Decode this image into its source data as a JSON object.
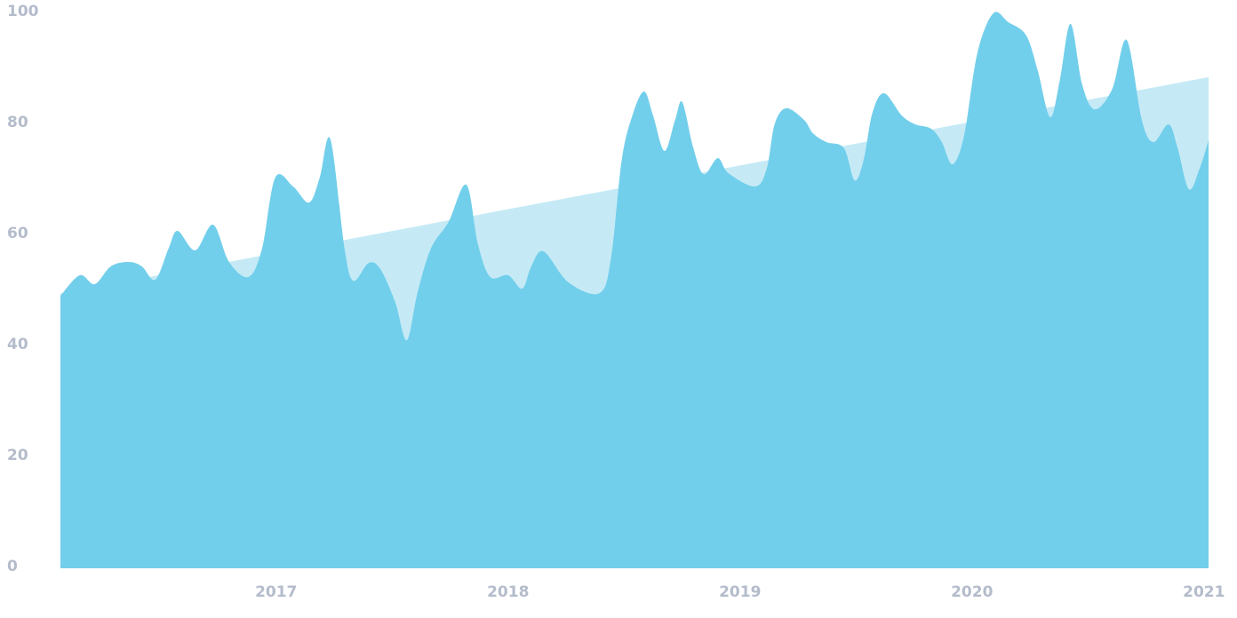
{
  "chart_data": {
    "type": "area",
    "xlim": [
      2016.07,
      2021.02
    ],
    "xticks": [
      2017,
      2018,
      2019,
      2020,
      2021
    ],
    "ylim": [
      0,
      100
    ],
    "yticks": [
      0,
      20,
      40,
      60,
      80,
      100
    ],
    "grid": false,
    "series": [
      {
        "color": "#c5eaf6",
        "x": [
          2016.07,
          2021.02
        ],
        "values": [
          49.5,
          88.5
        ]
      },
      {
        "color": "#72cfeb",
        "x": [
          2016.07,
          2016.153,
          2016.218,
          2016.287,
          2016.364,
          2016.421,
          2016.479,
          2016.536,
          2016.575,
          2016.651,
          2016.728,
          2016.797,
          2016.881,
          2016.939,
          2016.996,
          2017.073,
          2017.142,
          2017.188,
          2017.234,
          2017.295,
          2017.333,
          2017.398,
          2017.448,
          2017.513,
          2017.563,
          2017.609,
          2017.667,
          2017.743,
          2017.82,
          2017.87,
          2017.923,
          2018.0,
          2018.061,
          2018.1,
          2018.153,
          2018.261,
          2018.395,
          2018.444,
          2018.49,
          2018.536,
          2018.586,
          2018.625,
          2018.674,
          2018.72,
          2018.751,
          2018.797,
          2018.843,
          2018.904,
          2018.95,
          2019.065,
          2019.115,
          2019.149,
          2019.199,
          2019.276,
          2019.314,
          2019.372,
          2019.448,
          2019.494,
          2019.533,
          2019.571,
          2019.621,
          2019.697,
          2019.755,
          2019.824,
          2019.87,
          2019.916,
          2019.966,
          2020.023,
          2020.092,
          2020.157,
          2020.234,
          2020.284,
          2020.337,
          2020.379,
          2020.425,
          2020.475,
          2020.529,
          2020.605,
          2020.667,
          2020.732,
          2020.782,
          2020.847,
          2020.885,
          2020.935,
          2020.981,
          2021.02
        ],
        "values": [
          49.1,
          52.8,
          51.2,
          54.4,
          55.2,
          54.4,
          52,
          57.6,
          60.8,
          57.3,
          61.9,
          55.2,
          52.5,
          57.6,
          70.4,
          68.8,
          65.9,
          70.4,
          77.3,
          57.6,
          51.8,
          55,
          54,
          48,
          41.1,
          49.6,
          57.6,
          62.4,
          69.1,
          58.4,
          52.5,
          52.8,
          50.4,
          54.4,
          57.1,
          51.5,
          49.6,
          56,
          73.6,
          81.6,
          85.9,
          81.6,
          75.2,
          80.8,
          84,
          76,
          71,
          73.9,
          71.2,
          68.8,
          72,
          80,
          82.9,
          80.8,
          78.4,
          76.8,
          75.7,
          69.9,
          73.6,
          82.1,
          85.6,
          81.6,
          80,
          79.2,
          76.8,
          72.8,
          78,
          92.8,
          100,
          98.4,
          96,
          89.6,
          81.3,
          88,
          98.1,
          87.2,
          82.7,
          86.4,
          95.2,
          80.8,
          76.8,
          80,
          76,
          68.3,
          72,
          77.1
        ]
      }
    ]
  }
}
